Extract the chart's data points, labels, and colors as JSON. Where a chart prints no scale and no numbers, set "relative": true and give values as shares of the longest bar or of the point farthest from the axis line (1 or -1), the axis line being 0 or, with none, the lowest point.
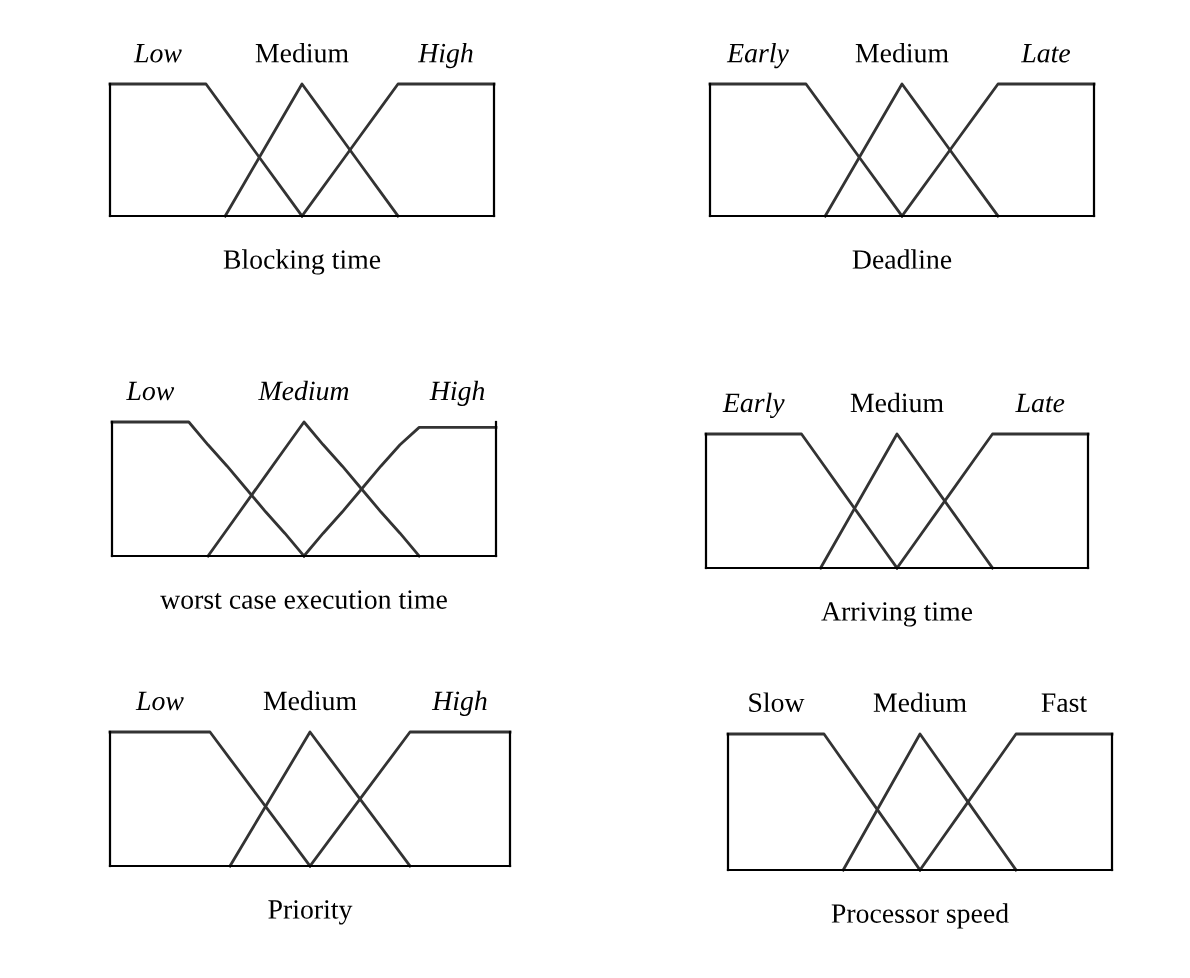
{
  "chart_data": [
    {
      "type": "line",
      "relative": true,
      "xlabel": "Blocking time",
      "categories": [
        null,
        null,
        null,
        null,
        null,
        null,
        null,
        null,
        null,
        null,
        null,
        null,
        null,
        null,
        null,
        null,
        null,
        null,
        null,
        null,
        null
      ],
      "series": [
        {
          "name": "Low",
          "color": "#333333",
          "values": [
            1,
            1,
            1,
            1,
            1,
            1,
            0.8,
            0.6,
            0.4,
            0.2,
            0,
            null,
            null,
            null,
            null,
            null,
            null,
            null,
            null,
            null,
            null
          ]
        },
        {
          "name": "Medium",
          "color": "#333333",
          "values": [
            null,
            null,
            null,
            null,
            null,
            null,
            0,
            0.25,
            0.5,
            0.75,
            1,
            0.8,
            0.6,
            0.4,
            0.2,
            0,
            null,
            null,
            null,
            null,
            null
          ]
        },
        {
          "name": "High",
          "color": "#333333",
          "values": [
            null,
            null,
            null,
            null,
            null,
            null,
            null,
            null,
            null,
            null,
            0,
            0.2,
            0.4,
            0.6,
            0.8,
            1,
            1,
            1,
            1,
            1,
            1
          ]
        }
      ]
    },
    {
      "type": "line",
      "relative": true,
      "xlabel": "Deadline",
      "categories": [
        null,
        null,
        null,
        null,
        null,
        null,
        null,
        null,
        null,
        null,
        null,
        null,
        null,
        null,
        null,
        null,
        null,
        null,
        null,
        null,
        null
      ],
      "series": [
        {
          "name": "Early",
          "color": "#333333",
          "values": [
            1,
            1,
            1,
            1,
            1,
            1,
            0.8,
            0.6,
            0.4,
            0.2,
            0,
            null,
            null,
            null,
            null,
            null,
            null,
            null,
            null,
            null,
            null
          ]
        },
        {
          "name": "Medium",
          "color": "#333333",
          "values": [
            null,
            null,
            null,
            null,
            null,
            null,
            0,
            0.25,
            0.5,
            0.75,
            1,
            0.8,
            0.6,
            0.4,
            0.2,
            0,
            null,
            null,
            null,
            null,
            null
          ]
        },
        {
          "name": "Late",
          "color": "#333333",
          "values": [
            null,
            null,
            null,
            null,
            null,
            null,
            null,
            null,
            null,
            null,
            0,
            0.2,
            0.4,
            0.6,
            0.8,
            1,
            1,
            1,
            1,
            1,
            1
          ]
        }
      ]
    },
    {
      "type": "line",
      "relative": true,
      "xlabel": "worst case execution time",
      "categories": [
        null,
        null,
        null,
        null,
        null,
        null,
        null,
        null,
        null,
        null,
        null,
        null,
        null,
        null,
        null,
        null,
        null,
        null,
        null,
        null,
        null
      ],
      "series": [
        {
          "name": "Low",
          "color": "#333333",
          "values": [
            1,
            1,
            1,
            1,
            1,
            0.83,
            0.67,
            0.5,
            0.33,
            0.17,
            0,
            null,
            null,
            null,
            null,
            null,
            null,
            null,
            null,
            null,
            null
          ]
        },
        {
          "name": "Medium",
          "color": "#333333",
          "values": [
            null,
            null,
            null,
            null,
            null,
            0,
            0.2,
            0.4,
            0.6,
            0.8,
            1,
            0.83,
            0.67,
            0.5,
            0.33,
            0.17,
            0,
            null,
            null,
            null,
            null
          ]
        },
        {
          "name": "High",
          "color": "#333333",
          "values": [
            null,
            null,
            null,
            null,
            null,
            null,
            null,
            null,
            null,
            null,
            0,
            0.17,
            0.33,
            0.5,
            0.67,
            0.83,
            0.96,
            0.96,
            0.96,
            0.96,
            0.96
          ]
        }
      ]
    },
    {
      "type": "line",
      "relative": true,
      "xlabel": "Arriving time",
      "categories": [
        null,
        null,
        null,
        null,
        null,
        null,
        null,
        null,
        null,
        null,
        null,
        null,
        null,
        null,
        null,
        null,
        null,
        null,
        null,
        null,
        null
      ],
      "series": [
        {
          "name": "Early",
          "color": "#333333",
          "values": [
            1,
            1,
            1,
            1,
            1,
            1,
            0.8,
            0.6,
            0.4,
            0.2,
            0,
            null,
            null,
            null,
            null,
            null,
            null,
            null,
            null,
            null,
            null
          ]
        },
        {
          "name": "Medium",
          "color": "#333333",
          "values": [
            null,
            null,
            null,
            null,
            null,
            null,
            0,
            0.25,
            0.5,
            0.75,
            1,
            0.8,
            0.6,
            0.4,
            0.2,
            0,
            null,
            null,
            null,
            null,
            null
          ]
        },
        {
          "name": "Late",
          "color": "#333333",
          "values": [
            null,
            null,
            null,
            null,
            null,
            null,
            null,
            null,
            null,
            null,
            0,
            0.2,
            0.4,
            0.6,
            0.8,
            1,
            1,
            1,
            1,
            1,
            1
          ]
        }
      ]
    },
    {
      "type": "line",
      "relative": true,
      "xlabel": "Priority",
      "categories": [
        null,
        null,
        null,
        null,
        null,
        null,
        null,
        null,
        null,
        null,
        null,
        null,
        null,
        null,
        null,
        null,
        null,
        null,
        null,
        null,
        null
      ],
      "series": [
        {
          "name": "Low",
          "color": "#333333",
          "values": [
            1,
            1,
            1,
            1,
            1,
            1,
            0.8,
            0.6,
            0.4,
            0.2,
            0,
            null,
            null,
            null,
            null,
            null,
            null,
            null,
            null,
            null,
            null
          ]
        },
        {
          "name": "Medium",
          "color": "#333333",
          "values": [
            null,
            null,
            null,
            null,
            null,
            null,
            0,
            0.25,
            0.5,
            0.75,
            1,
            0.8,
            0.6,
            0.4,
            0.2,
            0,
            null,
            null,
            null,
            null,
            null
          ]
        },
        {
          "name": "High",
          "color": "#333333",
          "values": [
            null,
            null,
            null,
            null,
            null,
            null,
            null,
            null,
            null,
            null,
            0,
            0.2,
            0.4,
            0.6,
            0.8,
            1,
            1,
            1,
            1,
            1,
            1
          ]
        }
      ]
    },
    {
      "type": "line",
      "relative": true,
      "xlabel": "Processor speed",
      "categories": [
        null,
        null,
        null,
        null,
        null,
        null,
        null,
        null,
        null,
        null,
        null,
        null,
        null,
        null,
        null,
        null,
        null,
        null,
        null,
        null,
        null
      ],
      "series": [
        {
          "name": "Slow",
          "color": "#333333",
          "values": [
            1,
            1,
            1,
            1,
            1,
            1,
            0.8,
            0.6,
            0.4,
            0.2,
            0,
            null,
            null,
            null,
            null,
            null,
            null,
            null,
            null,
            null,
            null
          ]
        },
        {
          "name": "Medium",
          "color": "#333333",
          "values": [
            null,
            null,
            null,
            null,
            null,
            null,
            0,
            0.25,
            0.5,
            0.75,
            1,
            0.8,
            0.6,
            0.4,
            0.2,
            0,
            null,
            null,
            null,
            null,
            null
          ]
        },
        {
          "name": "Fast",
          "color": "#333333",
          "values": [
            null,
            null,
            null,
            null,
            null,
            null,
            null,
            null,
            null,
            null,
            0,
            0.2,
            0.4,
            0.6,
            0.8,
            1,
            1,
            1,
            1,
            1,
            1
          ]
        }
      ]
    }
  ]
}
